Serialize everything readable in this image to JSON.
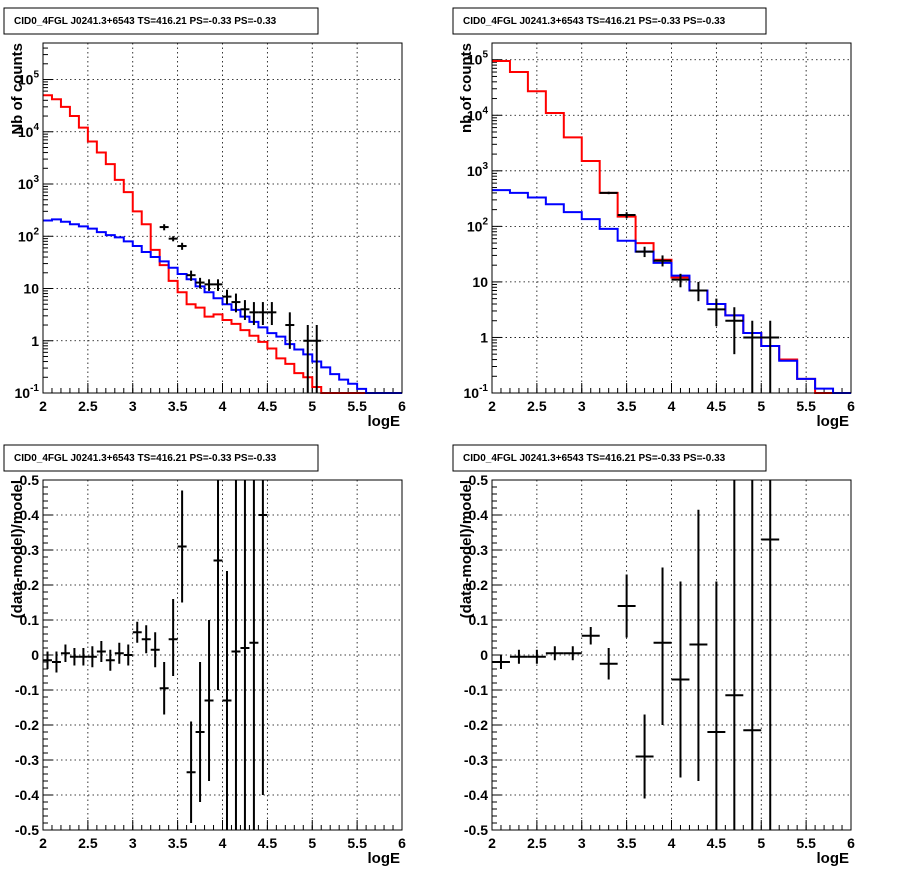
{
  "chart_data": [
    {
      "type": "line",
      "title": "CID0_4FGL J0241.3+6543 TS=416.21 PS=-0.33 PS=-0.33",
      "xlabel": "logE",
      "ylabel": "Nb of counts",
      "xlim": [
        2,
        6
      ],
      "ylim": [
        0.1,
        500000
      ],
      "yscale": "log",
      "x_ticks": [
        "2",
        "2.5",
        "3",
        "3.5",
        "4",
        "4.5",
        "5",
        "5.5",
        "6"
      ],
      "y_ticks": [
        {
          "base": "10",
          "exp": "-1"
        },
        {
          "base": "1",
          "exp": ""
        },
        {
          "base": "10",
          "exp": ""
        },
        {
          "base": "10",
          "exp": "2"
        },
        {
          "base": "10",
          "exp": "3"
        },
        {
          "base": "10",
          "exp": "4"
        },
        {
          "base": "10",
          "exp": "5"
        }
      ],
      "grid": true,
      "series": [
        {
          "color": "#ff0000",
          "bin_edges": [
            2.0,
            2.1,
            2.2,
            2.3,
            2.4,
            2.5,
            2.6,
            2.7,
            2.8,
            2.9,
            3.0,
            3.1,
            3.2,
            3.3,
            3.4,
            3.5,
            3.6,
            3.7,
            3.8,
            3.9,
            4.0,
            4.1,
            4.2,
            4.3,
            4.4,
            4.5,
            4.6,
            4.7,
            4.8,
            4.9,
            5.0,
            5.1,
            5.2,
            5.3,
            5.4,
            5.5,
            5.6,
            5.7,
            5.8,
            5.9,
            6.0
          ],
          "values": [
            50000,
            42000,
            30000,
            20000,
            12000,
            6500,
            4000,
            2400,
            1200,
            700,
            300,
            170,
            55,
            28,
            14,
            8.5,
            5,
            4.3,
            2.9,
            3.2,
            2.5,
            2.1,
            1.6,
            1.25,
            0.95,
            0.71,
            0.46,
            0.36,
            0.24,
            0.2,
            0.13,
            0.1,
            0.1,
            0.1,
            0.1,
            0.1,
            0.1,
            0.1,
            0.1,
            0.1
          ]
        },
        {
          "color": "#0000ff",
          "bin_edges": [
            2.0,
            2.1,
            2.2,
            2.3,
            2.4,
            2.5,
            2.6,
            2.7,
            2.8,
            2.9,
            3.0,
            3.1,
            3.2,
            3.3,
            3.4,
            3.5,
            3.6,
            3.7,
            3.8,
            3.9,
            4.0,
            4.1,
            4.2,
            4.3,
            4.4,
            4.5,
            4.6,
            4.7,
            4.8,
            4.9,
            5.0,
            5.1,
            5.2,
            5.3,
            5.4,
            5.5,
            5.6,
            5.7,
            5.8,
            5.9,
            6.0
          ],
          "values": [
            200,
            210,
            190,
            170,
            155,
            140,
            120,
            105,
            95,
            80,
            65,
            50,
            40,
            33,
            25,
            19,
            15,
            11,
            8.5,
            6.5,
            5,
            3.9,
            2.9,
            2.3,
            1.8,
            1.4,
            1.2,
            0.86,
            0.68,
            0.55,
            0.4,
            0.31,
            0.23,
            0.18,
            0.15,
            0.12,
            0.1,
            0.1,
            0.1,
            0.1
          ]
        }
      ],
      "points": [
        {
          "x": 3.35,
          "y": 150,
          "lo": 130,
          "hi": 170,
          "xerr": 0.05
        },
        {
          "x": 3.45,
          "y": 90,
          "lo": 80,
          "hi": 100,
          "xerr": 0.05
        },
        {
          "x": 3.55,
          "y": 65,
          "lo": 55,
          "hi": 75,
          "xerr": 0.05
        },
        {
          "x": 3.65,
          "y": 18,
          "lo": 14,
          "hi": 22,
          "xerr": 0.05
        },
        {
          "x": 3.75,
          "y": 13,
          "lo": 10,
          "hi": 16,
          "xerr": 0.05
        },
        {
          "x": 3.85,
          "y": 12,
          "lo": 9,
          "hi": 15,
          "xerr": 0.05
        },
        {
          "x": 3.95,
          "y": 12,
          "lo": 9,
          "hi": 15,
          "xerr": 0.05
        },
        {
          "x": 4.05,
          "y": 7,
          "lo": 5,
          "hi": 9.5,
          "xerr": 0.05
        },
        {
          "x": 4.15,
          "y": 5.5,
          "lo": 3.5,
          "hi": 8,
          "xerr": 0.05
        },
        {
          "x": 4.25,
          "y": 4,
          "lo": 2.5,
          "hi": 6,
          "xerr": 0.05
        },
        {
          "x": 4.35,
          "y": 3.5,
          "lo": 2,
          "hi": 5.5,
          "xerr": 0.05
        },
        {
          "x": 4.45,
          "y": 3.5,
          "lo": 2,
          "hi": 5.5,
          "xerr": 0.05
        },
        {
          "x": 4.55,
          "y": 3.5,
          "lo": 2,
          "hi": 5.5,
          "xerr": 0.05
        },
        {
          "x": 4.75,
          "y": 2,
          "lo": 0.7,
          "hi": 3.5,
          "xerr": 0.05
        },
        {
          "x": 4.95,
          "y": 1,
          "lo": 0.1,
          "hi": 2,
          "xerr": 0.05
        },
        {
          "x": 5.05,
          "y": 1,
          "lo": 0.1,
          "hi": 2,
          "xerr": 0.05
        }
      ]
    },
    {
      "type": "line",
      "title": "CID0_4FGL J0241.3+6543 TS=416.21 PS=-0.33 PS=-0.33",
      "xlabel": "logE",
      "ylabel": "nb of counts",
      "xlim": [
        2,
        6
      ],
      "ylim": [
        0.1,
        200000
      ],
      "yscale": "log",
      "x_ticks": [
        "2",
        "2.5",
        "3",
        "3.5",
        "4",
        "4.5",
        "5",
        "5.5",
        "6"
      ],
      "y_ticks": [
        {
          "base": "10",
          "exp": "-1"
        },
        {
          "base": "1",
          "exp": ""
        },
        {
          "base": "10",
          "exp": ""
        },
        {
          "base": "10",
          "exp": "2"
        },
        {
          "base": "10",
          "exp": "3"
        },
        {
          "base": "10",
          "exp": "4"
        },
        {
          "base": "10",
          "exp": "5"
        }
      ],
      "grid": true,
      "series": [
        {
          "color": "#ff0000",
          "bin_edges": [
            2.0,
            2.2,
            2.4,
            2.6,
            2.8,
            3.0,
            3.2,
            3.4,
            3.6,
            3.8,
            4.0,
            4.2,
            4.4,
            4.6,
            4.8,
            5.0,
            5.2,
            5.4,
            5.6,
            5.8,
            6.0
          ],
          "values": [
            95000,
            60000,
            27000,
            11000,
            4000,
            1500,
            400,
            150,
            50,
            25,
            12,
            7,
            4,
            2.5,
            1.2,
            0.7,
            0.4,
            0.18,
            0.1,
            0.1
          ]
        },
        {
          "color": "#0000ff",
          "bin_edges": [
            2.0,
            2.2,
            2.4,
            2.6,
            2.8,
            3.0,
            3.2,
            3.4,
            3.6,
            3.8,
            4.0,
            4.2,
            4.4,
            4.6,
            4.8,
            5.0,
            5.2,
            5.4,
            5.6,
            5.8,
            6.0
          ],
          "values": [
            450,
            400,
            330,
            250,
            180,
            135,
            90,
            55,
            35,
            22,
            13,
            7,
            4,
            2.5,
            1.2,
            0.7,
            0.38,
            0.18,
            0.12,
            0.1
          ]
        }
      ],
      "points": [
        {
          "x": 3.3,
          "y": 400,
          "lo": 380,
          "hi": 420,
          "xerr": 0.1
        },
        {
          "x": 3.5,
          "y": 160,
          "lo": 140,
          "hi": 180,
          "xerr": 0.1
        },
        {
          "x": 3.7,
          "y": 35,
          "lo": 28,
          "hi": 43,
          "xerr": 0.1
        },
        {
          "x": 3.9,
          "y": 24,
          "lo": 19,
          "hi": 30,
          "xerr": 0.1
        },
        {
          "x": 4.1,
          "y": 11,
          "lo": 8,
          "hi": 14,
          "xerr": 0.1
        },
        {
          "x": 4.3,
          "y": 7,
          "lo": 4.5,
          "hi": 10,
          "xerr": 0.1
        },
        {
          "x": 4.5,
          "y": 3.2,
          "lo": 1.6,
          "hi": 5,
          "xerr": 0.1
        },
        {
          "x": 4.7,
          "y": 2,
          "lo": 0.5,
          "hi": 3.5,
          "xerr": 0.1
        },
        {
          "x": 4.9,
          "y": 1,
          "lo": 0.1,
          "hi": 2,
          "xerr": 0.1
        },
        {
          "x": 5.1,
          "y": 1,
          "lo": 0.1,
          "hi": 2,
          "xerr": 0.1
        }
      ]
    },
    {
      "type": "scatter",
      "title": "CID0_4FGL J0241.3+6543 TS=416.21 PS=-0.33 PS=-0.33",
      "xlabel": "logE",
      "ylabel": "(data-model)/model",
      "xlim": [
        2,
        6
      ],
      "ylim": [
        -0.5,
        0.5
      ],
      "yscale": "linear",
      "x_ticks": [
        "2",
        "2.5",
        "3",
        "3.5",
        "4",
        "4.5",
        "5",
        "5.5",
        "6"
      ],
      "y_ticks": [
        "-0.5",
        "-0.4",
        "-0.3",
        "-0.2",
        "-0.1",
        "0",
        "0.1",
        "0.2",
        "0.3",
        "0.4",
        "0.5"
      ],
      "grid": true,
      "points": [
        {
          "x": 2.05,
          "y": -0.015,
          "lo": -0.04,
          "hi": 0.01,
          "xerr": 0.05
        },
        {
          "x": 2.15,
          "y": -0.02,
          "lo": -0.05,
          "hi": 0.01,
          "xerr": 0.05
        },
        {
          "x": 2.25,
          "y": 0.005,
          "lo": -0.02,
          "hi": 0.03,
          "xerr": 0.05
        },
        {
          "x": 2.35,
          "y": -0.005,
          "lo": -0.03,
          "hi": 0.02,
          "xerr": 0.05
        },
        {
          "x": 2.45,
          "y": -0.005,
          "lo": -0.03,
          "hi": 0.02,
          "xerr": 0.05
        },
        {
          "x": 2.55,
          "y": -0.005,
          "lo": -0.035,
          "hi": 0.025,
          "xerr": 0.05
        },
        {
          "x": 2.65,
          "y": 0.01,
          "lo": -0.02,
          "hi": 0.04,
          "xerr": 0.05
        },
        {
          "x": 2.75,
          "y": -0.015,
          "lo": -0.045,
          "hi": 0.015,
          "xerr": 0.05
        },
        {
          "x": 2.85,
          "y": 0.005,
          "lo": -0.025,
          "hi": 0.035,
          "xerr": 0.05
        },
        {
          "x": 2.95,
          "y": 0.0,
          "lo": -0.03,
          "hi": 0.03,
          "xerr": 0.05
        },
        {
          "x": 3.05,
          "y": 0.065,
          "lo": 0.035,
          "hi": 0.095,
          "xerr": 0.05
        },
        {
          "x": 3.15,
          "y": 0.045,
          "lo": 0.005,
          "hi": 0.085,
          "xerr": 0.05
        },
        {
          "x": 3.25,
          "y": 0.015,
          "lo": -0.035,
          "hi": 0.065,
          "xerr": 0.05
        },
        {
          "x": 3.35,
          "y": -0.095,
          "lo": -0.17,
          "hi": -0.02,
          "xerr": 0.05
        },
        {
          "x": 3.45,
          "y": 0.045,
          "lo": -0.06,
          "hi": 0.16,
          "xerr": 0.05
        },
        {
          "x": 3.55,
          "y": 0.31,
          "lo": 0.15,
          "hi": 0.47,
          "xerr": 0.05
        },
        {
          "x": 3.65,
          "y": -0.335,
          "lo": -0.48,
          "hi": -0.19,
          "xerr": 0.05
        },
        {
          "x": 3.75,
          "y": -0.22,
          "lo": -0.42,
          "hi": -0.02,
          "xerr": 0.05
        },
        {
          "x": 3.85,
          "y": -0.13,
          "lo": -0.36,
          "hi": 0.1,
          "xerr": 0.05
        },
        {
          "x": 3.95,
          "y": 0.27,
          "lo": -0.1,
          "hi": 0.5,
          "xerr": 0.05
        },
        {
          "x": 4.05,
          "y": -0.13,
          "lo": -0.5,
          "hi": 0.24,
          "xerr": 0.05
        },
        {
          "x": 4.15,
          "y": 0.01,
          "lo": -0.5,
          "hi": 0.5,
          "xerr": 0.05
        },
        {
          "x": 4.25,
          "y": 0.02,
          "lo": -0.5,
          "hi": 0.5,
          "xerr": 0.05
        },
        {
          "x": 4.35,
          "y": 0.035,
          "lo": -0.5,
          "hi": 0.5,
          "xerr": 0.05
        },
        {
          "x": 4.45,
          "y": 0.4,
          "lo": -0.4,
          "hi": 0.5,
          "xerr": 0.05
        }
      ]
    },
    {
      "type": "scatter",
      "title": "CID0_4FGL J0241.3+6543 TS=416.21 PS=-0.33 PS=-0.33",
      "xlabel": "logE",
      "ylabel": "(data-model)/model",
      "xlim": [
        2,
        6
      ],
      "ylim": [
        -0.5,
        0.5
      ],
      "yscale": "linear",
      "x_ticks": [
        "2",
        "2.5",
        "3",
        "3.5",
        "4",
        "4.5",
        "5",
        "5.5",
        "6"
      ],
      "y_ticks": [
        "-0.5",
        "-0.4",
        "-0.3",
        "-0.2",
        "-0.1",
        "0",
        "0.1",
        "0.2",
        "0.3",
        "0.4",
        "0.5"
      ],
      "grid": true,
      "points": [
        {
          "x": 2.1,
          "y": -0.02,
          "lo": -0.04,
          "hi": 0.0,
          "xerr": 0.1
        },
        {
          "x": 2.3,
          "y": -0.005,
          "lo": -0.025,
          "hi": 0.015,
          "xerr": 0.1
        },
        {
          "x": 2.5,
          "y": -0.005,
          "lo": -0.025,
          "hi": 0.015,
          "xerr": 0.1
        },
        {
          "x": 2.7,
          "y": 0.005,
          "lo": -0.015,
          "hi": 0.025,
          "xerr": 0.1
        },
        {
          "x": 2.9,
          "y": 0.005,
          "lo": -0.015,
          "hi": 0.025,
          "xerr": 0.1
        },
        {
          "x": 3.1,
          "y": 0.055,
          "lo": 0.03,
          "hi": 0.08,
          "xerr": 0.1
        },
        {
          "x": 3.3,
          "y": -0.025,
          "lo": -0.07,
          "hi": 0.02,
          "xerr": 0.1
        },
        {
          "x": 3.5,
          "y": 0.14,
          "lo": 0.05,
          "hi": 0.23,
          "xerr": 0.1
        },
        {
          "x": 3.7,
          "y": -0.29,
          "lo": -0.41,
          "hi": -0.17,
          "xerr": 0.1
        },
        {
          "x": 3.9,
          "y": 0.035,
          "lo": -0.2,
          "hi": 0.25,
          "xerr": 0.1
        },
        {
          "x": 4.1,
          "y": -0.07,
          "lo": -0.35,
          "hi": 0.21,
          "xerr": 0.1
        },
        {
          "x": 4.3,
          "y": 0.03,
          "lo": -0.36,
          "hi": 0.415,
          "xerr": 0.1
        },
        {
          "x": 4.5,
          "y": -0.22,
          "lo": -0.5,
          "hi": 0.21,
          "xerr": 0.1
        },
        {
          "x": 4.7,
          "y": -0.115,
          "lo": -0.5,
          "hi": 0.5,
          "xerr": 0.1
        },
        {
          "x": 4.9,
          "y": -0.215,
          "lo": -0.5,
          "hi": 0.5,
          "xerr": 0.1
        },
        {
          "x": 5.1,
          "y": 0.33,
          "lo": -0.5,
          "hi": 0.5,
          "xerr": 0.1
        }
      ]
    }
  ]
}
